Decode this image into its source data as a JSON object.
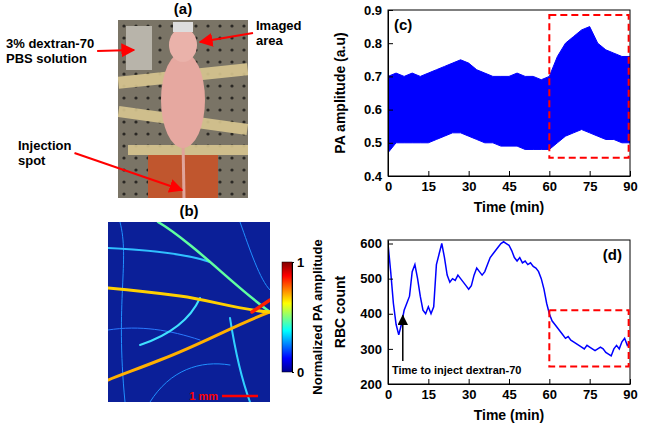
{
  "chart_data": [
    {
      "type": "image",
      "title": "(a)",
      "annotations": [
        {
          "text": "Imaged area"
        },
        {
          "text": "3% dextran-70 PBS solution"
        },
        {
          "text": "Injection spot"
        }
      ]
    },
    {
      "type": "image",
      "title": "(b)",
      "colorbar_label": "Normalized PA amplitude",
      "colorbar_range": [
        0,
        1
      ],
      "colorbar_ticks": [
        0,
        1
      ],
      "scale_bar_label": "1 mm"
    },
    {
      "type": "area",
      "title": "(c)",
      "x_label": "Time (min)",
      "y_label": "PA amplitude (a.u)",
      "xlim": [
        0,
        90
      ],
      "xticks": [
        0,
        15,
        30,
        45,
        60,
        75,
        90
      ],
      "ylim": [
        0.4,
        0.9
      ],
      "yticks": [
        0.4,
        0.5,
        0.6,
        0.7,
        0.8,
        0.9
      ],
      "x": [
        0,
        3,
        6,
        9,
        12,
        15,
        18,
        21,
        24,
        27,
        30,
        33,
        36,
        39,
        42,
        45,
        48,
        51,
        54,
        57,
        60,
        63,
        66,
        69,
        72,
        75,
        78,
        81,
        84,
        87,
        90
      ],
      "series": [
        {
          "color": "#0000ff",
          "values_low": [
            0.47,
            0.5,
            0.5,
            0.5,
            0.5,
            0.5,
            0.51,
            0.52,
            0.53,
            0.53,
            0.52,
            0.51,
            0.5,
            0.5,
            0.49,
            0.49,
            0.49,
            0.48,
            0.48,
            0.48,
            0.48,
            0.5,
            0.52,
            0.53,
            0.54,
            0.53,
            0.52,
            0.51,
            0.51,
            0.5,
            0.5
          ],
          "values_high": [
            0.7,
            0.71,
            0.7,
            0.71,
            0.7,
            0.71,
            0.72,
            0.73,
            0.74,
            0.75,
            0.74,
            0.72,
            0.71,
            0.7,
            0.7,
            0.7,
            0.71,
            0.7,
            0.7,
            0.69,
            0.7,
            0.76,
            0.8,
            0.82,
            0.84,
            0.85,
            0.8,
            0.78,
            0.77,
            0.76,
            0.76
          ]
        }
      ],
      "highlight": {
        "x": [
          60,
          89.5
        ],
        "y": [
          0.455,
          0.885
        ],
        "color": "#ff0000",
        "line_style": "dashed"
      }
    },
    {
      "type": "line",
      "title": "(d)",
      "x_label": "Time (min)",
      "y_label": "RBC count",
      "xlim": [
        0,
        90
      ],
      "xticks": [
        0,
        15,
        30,
        45,
        60,
        75,
        90
      ],
      "ylim": [
        200,
        610
      ],
      "yticks": [
        200,
        300,
        400,
        500,
        600
      ],
      "x": [
        0,
        1,
        2,
        3,
        4,
        5,
        6,
        7,
        8,
        9,
        10,
        11,
        12,
        13,
        14,
        15,
        16,
        17,
        18,
        19,
        20,
        21,
        22,
        23,
        24,
        25,
        26,
        27,
        28,
        29,
        30,
        31,
        32,
        33,
        34,
        35,
        36,
        37,
        38,
        39,
        40,
        41,
        42,
        43,
        44,
        45,
        46,
        47,
        48,
        49,
        50,
        51,
        52,
        53,
        54,
        55,
        56,
        57,
        58,
        59,
        60,
        61,
        62,
        63,
        64,
        65,
        66,
        67,
        68,
        69,
        70,
        71,
        72,
        73,
        74,
        75,
        76,
        77,
        78,
        79,
        80,
        81,
        82,
        83,
        84,
        85,
        86,
        87,
        88,
        89,
        90
      ],
      "series": [
        {
          "color": "#0000ff",
          "values": [
            600,
            520,
            430,
            370,
            340,
            370,
            410,
            430,
            450,
            520,
            540,
            500,
            450,
            410,
            400,
            420,
            400,
            420,
            540,
            570,
            600,
            560,
            510,
            490,
            500,
            495,
            510,
            500,
            490,
            480,
            470,
            480,
            510,
            530,
            520,
            510,
            520,
            540,
            560,
            570,
            580,
            590,
            600,
            605,
            600,
            595,
            580,
            560,
            550,
            560,
            545,
            550,
            540,
            545,
            535,
            530,
            520,
            500,
            470,
            430,
            400,
            380,
            370,
            360,
            350,
            340,
            330,
            335,
            325,
            320,
            315,
            310,
            305,
            300,
            310,
            305,
            300,
            295,
            300,
            305,
            300,
            290,
            285,
            280,
            300,
            310,
            300,
            320,
            330,
            310,
            320
          ]
        }
      ],
      "annotations": [
        {
          "text": "Time to inject dextran-70",
          "x": 5.5,
          "y": 395
        }
      ],
      "highlight": {
        "x": [
          60,
          89.5
        ],
        "y": [
          250,
          410
        ],
        "color": "#ff0000",
        "line_style": "dashed"
      }
    }
  ]
}
